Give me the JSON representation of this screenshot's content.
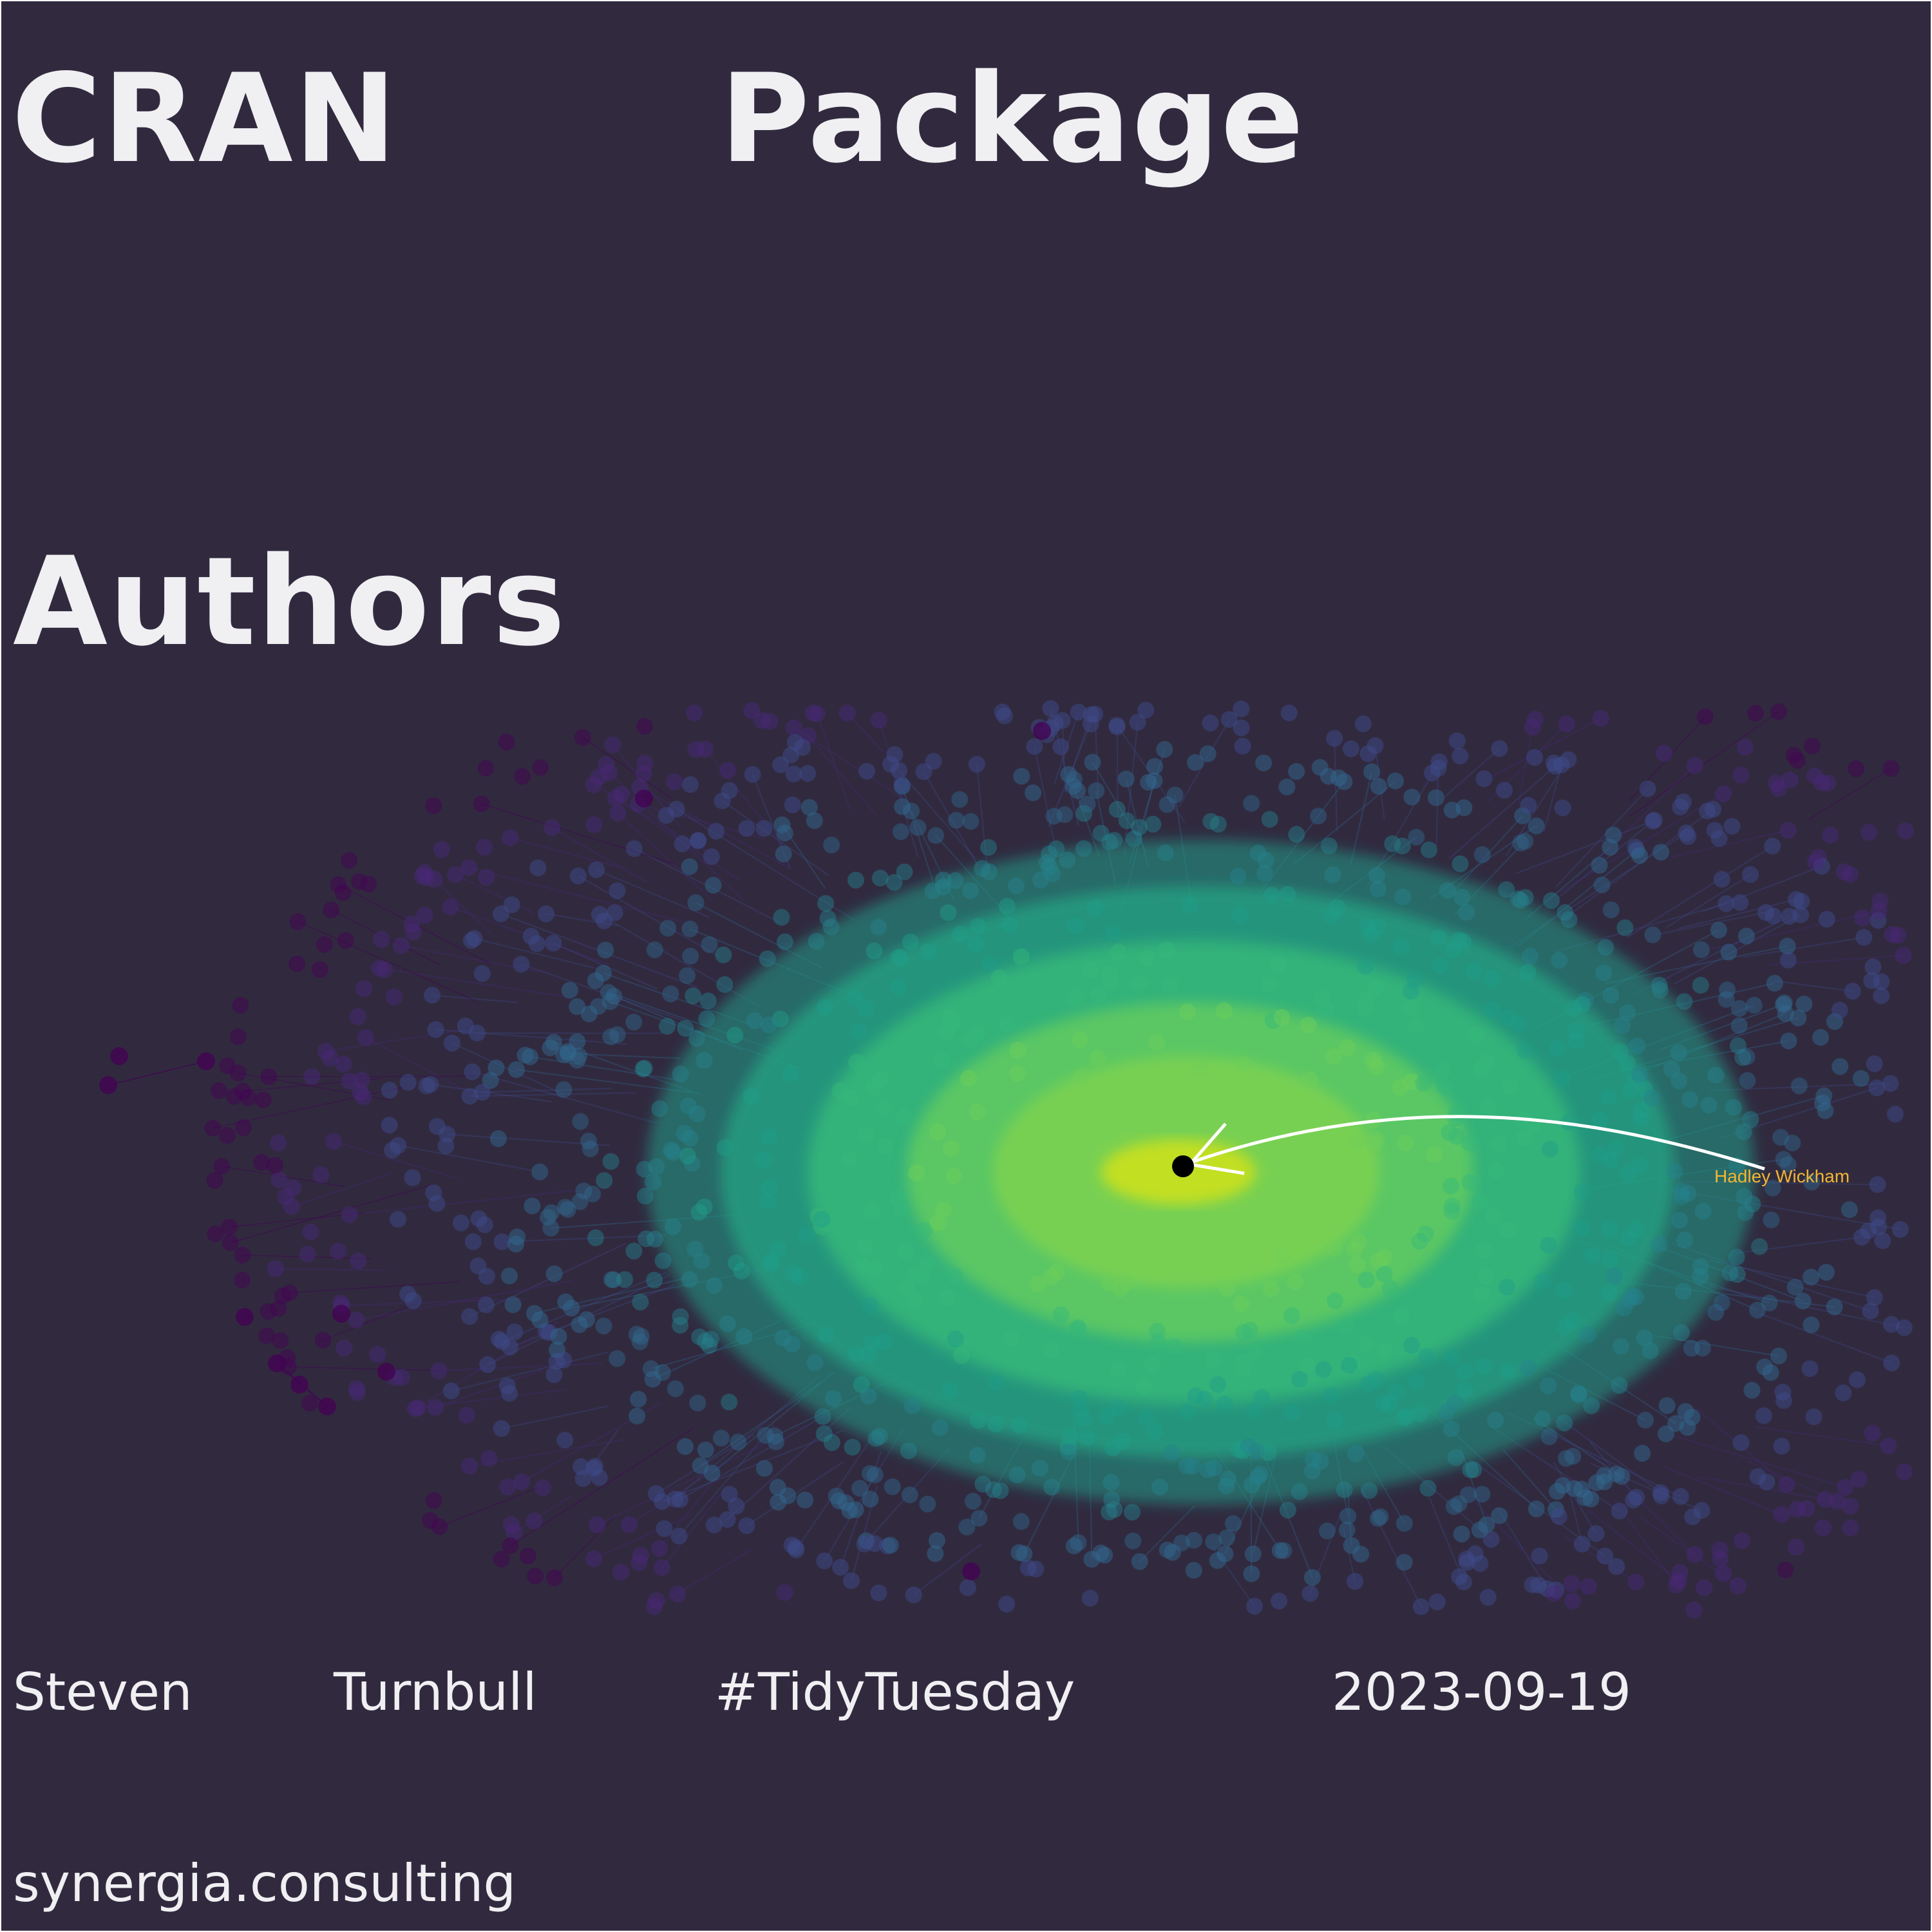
{
  "title": {
    "words": [
      "CRAN",
      "Package",
      "Authors"
    ]
  },
  "subtitle": {
    "words": [
      "Steven",
      "Turnbull",
      "#TidyTuesday",
      "2023-09-19"
    ]
  },
  "caption": "synergia.consulting",
  "colors": {
    "background": "#312a3f",
    "text": "#f0eff2",
    "annotation_label": "#f2b632",
    "annotation_arrow": "#ffffff",
    "focus_node": "#000000",
    "palette": "viridis"
  },
  "chart_data": {
    "type": "network",
    "layout": "radial",
    "color_scale": "viridis",
    "node_encoding": "color by closeness to central author (yellow = closest, purple = most distant)",
    "focus_node": "Hadley Wickham",
    "annotations": [
      {
        "text": "Hadley Wickham",
        "target": "focus_node"
      }
    ]
  }
}
